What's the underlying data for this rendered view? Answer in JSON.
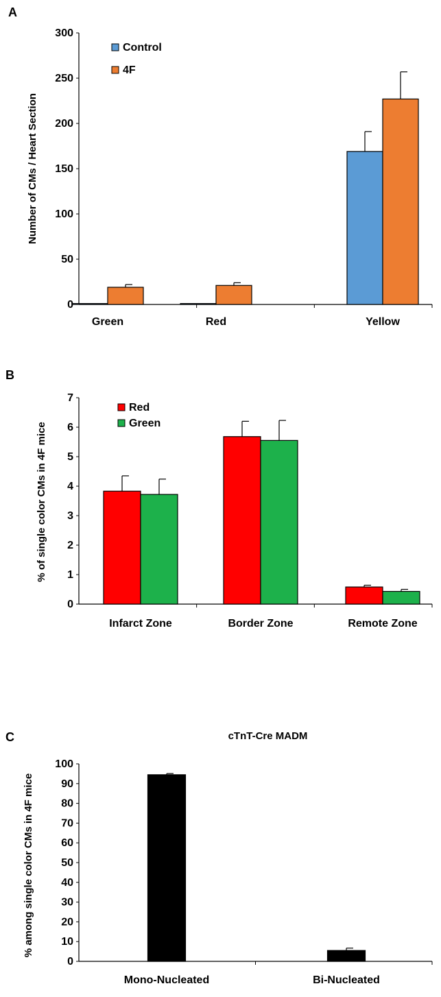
{
  "chart_data": [
    {
      "panel_label": "A",
      "type": "bar",
      "title": "",
      "ylabel": "Number of CMs / Heart Section",
      "xlabel": "",
      "ylim": [
        0,
        300
      ],
      "yticks": [
        0,
        50,
        100,
        150,
        200,
        250,
        300
      ],
      "categories": [
        "Green",
        "Red",
        "Yellow"
      ],
      "series": [
        {
          "name": "Control",
          "color": "#5b9bd5",
          "values": [
            1,
            1,
            169
          ],
          "errors": [
            0,
            0,
            22
          ]
        },
        {
          "name": "4F",
          "color": "#ed7d31",
          "values": [
            19,
            21,
            227
          ],
          "errors": [
            3,
            3,
            30
          ]
        }
      ],
      "legend": "top-left"
    },
    {
      "panel_label": "B",
      "type": "bar",
      "title": "",
      "ylabel": "% of single color CMs in 4F mice",
      "xlabel": "",
      "ylim": [
        0,
        7
      ],
      "yticks": [
        0,
        1,
        2,
        3,
        4,
        5,
        6,
        7
      ],
      "categories": [
        "Infarct Zone",
        "Border Zone",
        "Remote Zone"
      ],
      "series": [
        {
          "name": "Red",
          "color": "#ff0000",
          "values": [
            3.83,
            5.68,
            0.58
          ],
          "errors": [
            0.52,
            0.52,
            0.06
          ]
        },
        {
          "name": "Green",
          "color": "#1db14b",
          "values": [
            3.72,
            5.55,
            0.43
          ],
          "errors": [
            0.52,
            0.68,
            0.07
          ]
        }
      ],
      "legend": "top-left"
    },
    {
      "panel_label": "C",
      "type": "bar",
      "title": "cTnT-Cre MADM",
      "ylabel": "% among single color CMs in 4F mice",
      "xlabel": "",
      "ylim": [
        0,
        100
      ],
      "yticks": [
        0,
        10,
        20,
        30,
        40,
        50,
        60,
        70,
        80,
        90,
        100
      ],
      "categories": [
        "Mono-Nucleated",
        "Bi-Nucleated"
      ],
      "series": [
        {
          "color": "#000000",
          "values": [
            94.5,
            5.5
          ],
          "errors": [
            0.6,
            1.2
          ]
        }
      ],
      "legend": "none"
    }
  ]
}
